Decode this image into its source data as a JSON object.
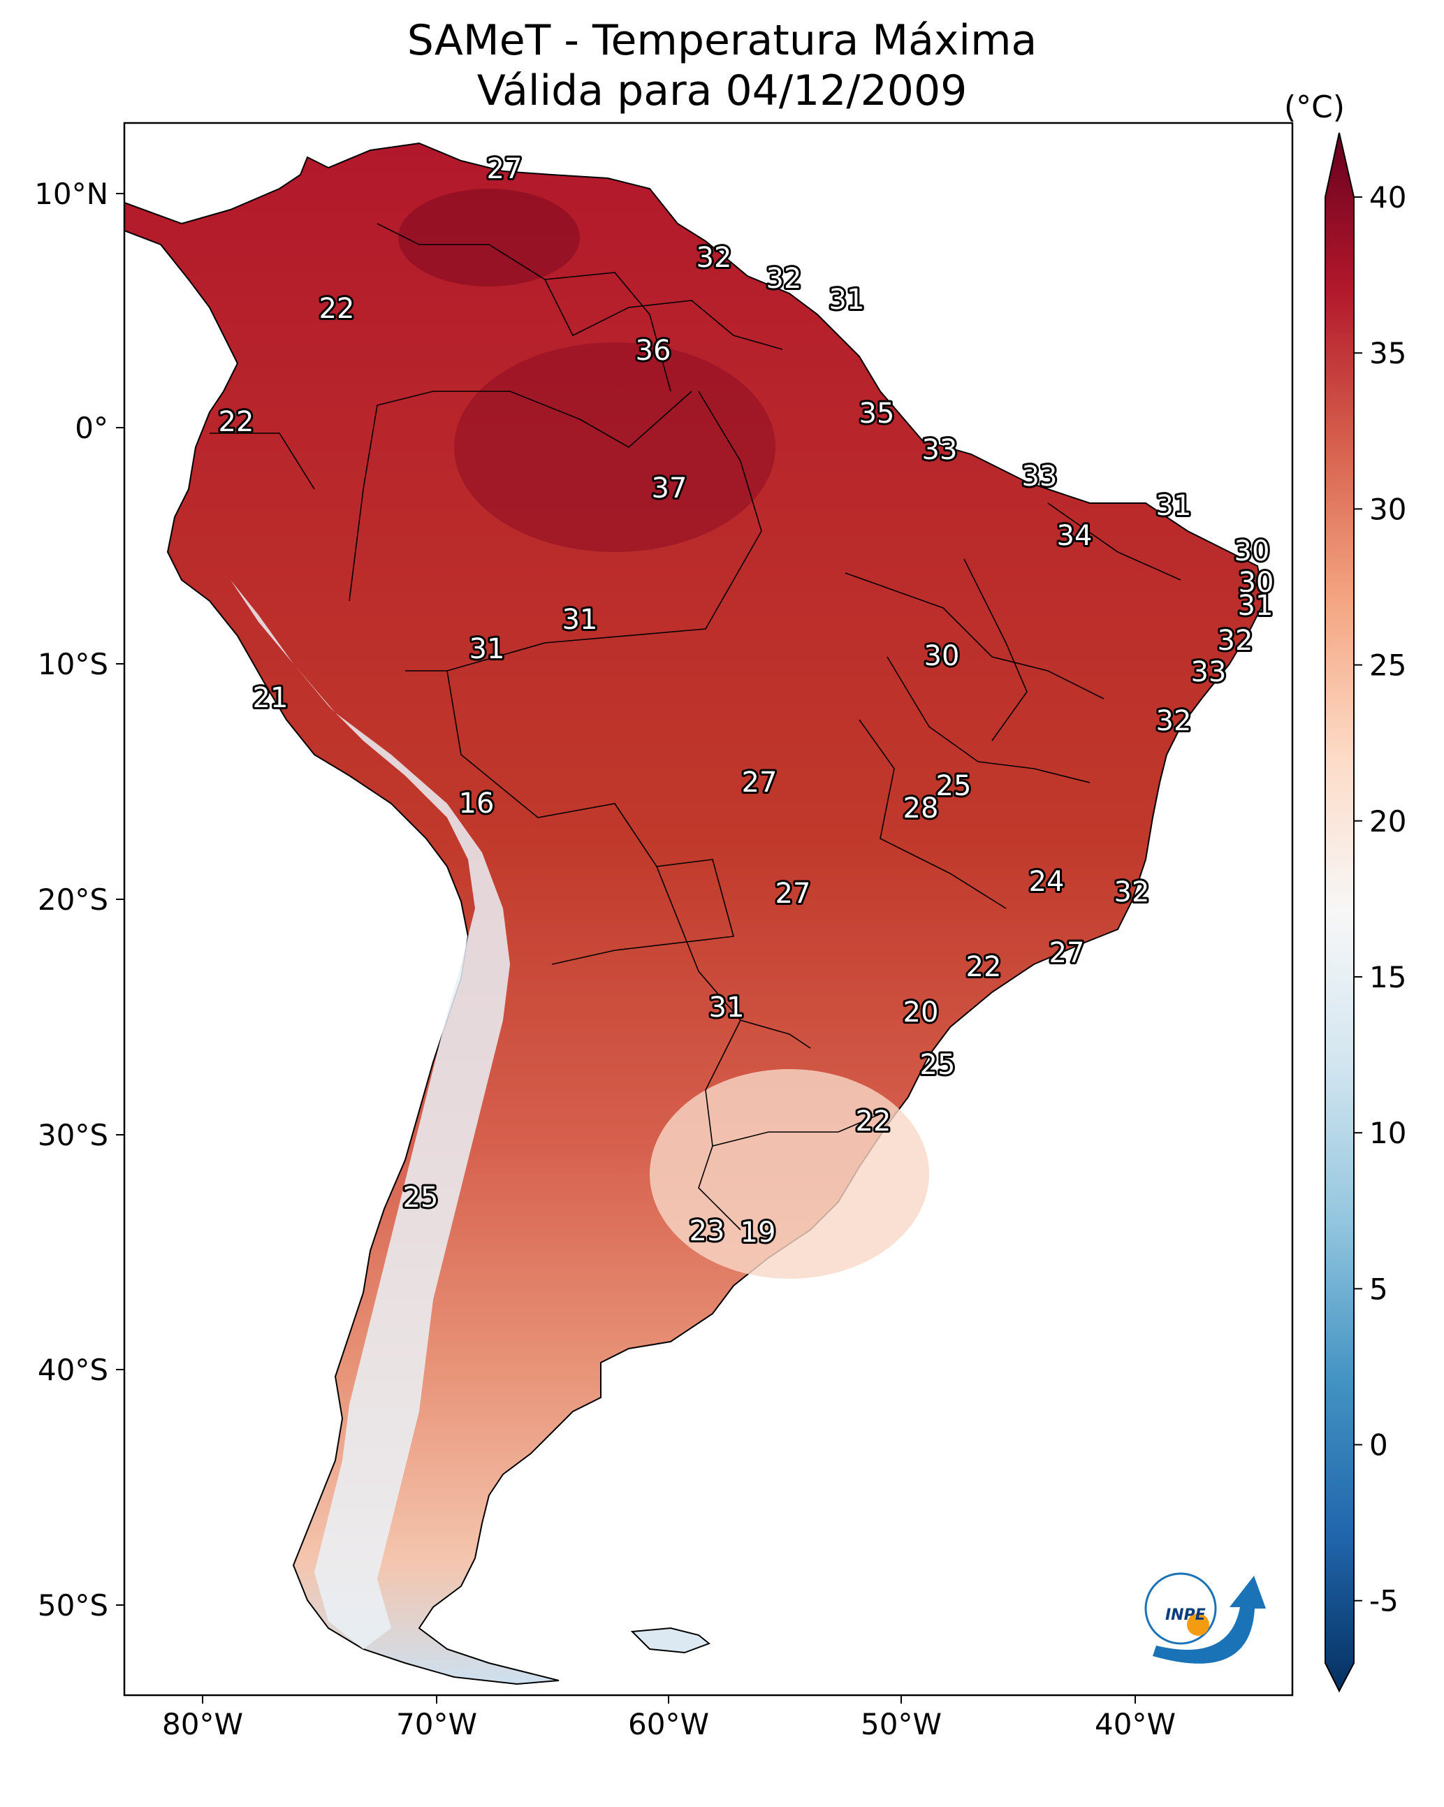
{
  "title": {
    "line1": "SAMeT - Temperatura Máxima",
    "line2": "Válida para 04/12/2009"
  },
  "colorbar": {
    "unit": "(°C)",
    "ticks": [
      "40",
      "35",
      "30",
      "25",
      "20",
      "15",
      "10",
      "5",
      "0",
      "-5"
    ],
    "range": [
      -7,
      40
    ],
    "colors": [
      "#053061",
      "#2166ac",
      "#4393c3",
      "#92c5de",
      "#d1e5f0",
      "#f7f7f7",
      "#fddbc7",
      "#f4a582",
      "#d6604d",
      "#b2182b",
      "#67001f"
    ]
  },
  "axes": {
    "lat_labels": [
      "10°N",
      "0°",
      "10°S",
      "20°S",
      "30°S",
      "40°S",
      "50°S"
    ],
    "lon_labels": [
      "80°W",
      "70°W",
      "60°W",
      "50°W",
      "40°W"
    ]
  },
  "contour_labels": [
    "27",
    "32",
    "32",
    "31",
    "22",
    "36",
    "22",
    "35",
    "33",
    "37",
    "33",
    "31",
    "34",
    "30",
    "30",
    "31",
    "31",
    "31",
    "32",
    "30",
    "33",
    "21",
    "32",
    "16",
    "27",
    "25",
    "28",
    "24",
    "32",
    "27",
    "27",
    "22",
    "31",
    "20",
    "25",
    "22",
    "25",
    "23",
    "19"
  ],
  "logo": {
    "text": "INPE"
  }
}
